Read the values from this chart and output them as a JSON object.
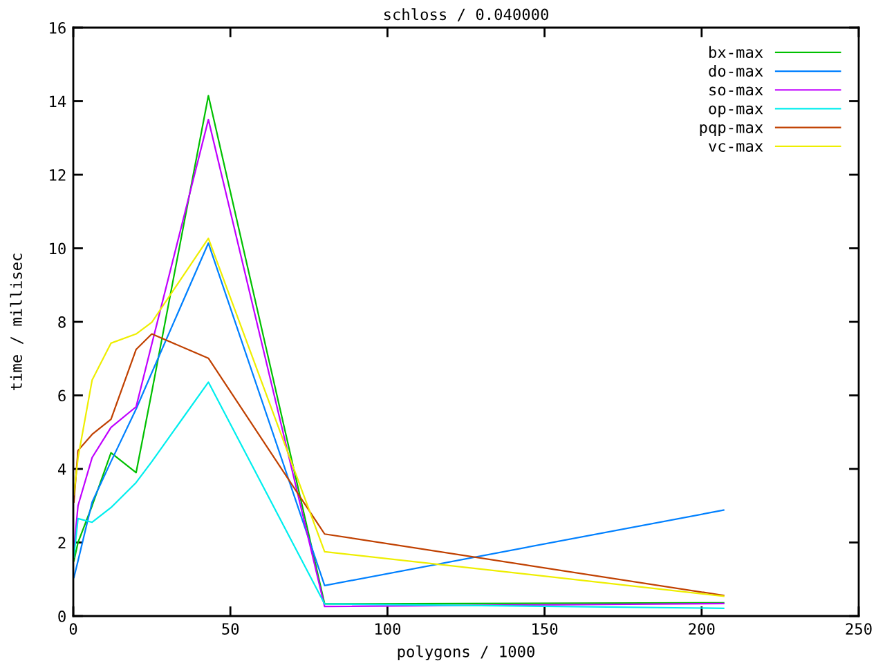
{
  "chart_data": {
    "type": "line",
    "title": "schloss / 0.040000",
    "xlabel": "polygons / 1000",
    "ylabel": "time / millisec",
    "x": [
      0.2,
      1.5,
      6,
      12,
      20,
      25,
      43,
      80,
      207
    ],
    "series": [
      {
        "name": "bx-max",
        "color": "#00c000",
        "values": [
          1.5,
          2.0,
          3.0,
          4.44,
          3.9,
          6.1,
          14.15,
          0.33,
          0.36
        ]
      },
      {
        "name": "do-max",
        "color": "#0080ff",
        "values": [
          1.05,
          1.5,
          3.1,
          4.2,
          5.63,
          6.62,
          10.14,
          0.83,
          2.88
        ]
      },
      {
        "name": "so-max",
        "color": "#c000ff",
        "values": [
          1.8,
          3.0,
          4.31,
          5.13,
          5.69,
          7.4,
          13.5,
          0.26,
          0.34
        ]
      },
      {
        "name": "op-max",
        "color": "#00eeee",
        "values": [
          1.6,
          2.65,
          2.55,
          2.95,
          3.63,
          4.2,
          6.36,
          0.33,
          0.21
        ]
      },
      {
        "name": "pqp-max",
        "color": "#c04000",
        "values": [
          3.1,
          4.5,
          4.94,
          5.35,
          7.25,
          7.67,
          7.01,
          2.23,
          0.56
        ]
      },
      {
        "name": "vc-max",
        "color": "#eeee00",
        "values": [
          3.3,
          4.3,
          6.42,
          7.42,
          7.67,
          7.99,
          10.27,
          1.75,
          0.54
        ]
      }
    ],
    "xlim": [
      0,
      250
    ],
    "xticks": [
      0,
      50,
      100,
      150,
      200,
      250
    ],
    "ylim": [
      0,
      16
    ],
    "yticks": [
      0,
      2,
      4,
      6,
      8,
      10,
      12,
      14,
      16
    ],
    "grid": false,
    "legend": "top right",
    "marker": "none",
    "line_style": "solid"
  }
}
